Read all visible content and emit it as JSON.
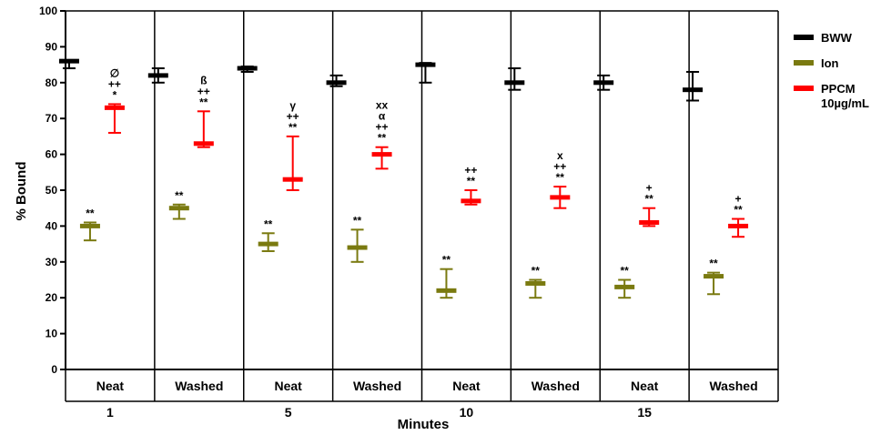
{
  "chart_data": {
    "type": "scatter",
    "ylabel": "% Bound",
    "xlabel": "Minutes",
    "ylim": [
      0,
      100
    ],
    "yticks": [
      "0",
      "10",
      "20",
      "30",
      "40",
      "50",
      "60",
      "70",
      "80",
      "90",
      "100"
    ],
    "legend_position": "right",
    "grid": false,
    "time_labels": [
      "1",
      "5",
      "10",
      "15"
    ],
    "condition_labels": [
      "Neat",
      "Washed",
      "Neat",
      "Washed",
      "Neat",
      "Washed",
      "Neat",
      "Washed"
    ],
    "legend": [
      {
        "name": "BWW",
        "color": "#000000"
      },
      {
        "name": "Ion",
        "color": "#7a7a10"
      },
      {
        "name": "PPCM",
        "name2": "10µg/mL",
        "color": "#ff0000"
      }
    ],
    "series": [
      {
        "name": "BWW",
        "color": "#000000",
        "mean": [
          86,
          82,
          84,
          80,
          85,
          80,
          80,
          78
        ],
        "low": [
          84,
          80,
          83,
          79,
          80,
          78,
          78,
          75
        ],
        "high": [
          86,
          84,
          84.5,
          82,
          85.5,
          84,
          82,
          83
        ],
        "annotations": [
          [],
          [],
          [],
          [],
          [],
          [],
          [],
          []
        ]
      },
      {
        "name": "Ion",
        "color": "#7a7a10",
        "mean": [
          40,
          45,
          35,
          34,
          22,
          24,
          23,
          26
        ],
        "low": [
          36,
          42,
          33,
          30,
          20,
          20,
          20,
          21
        ],
        "high": [
          41,
          46,
          38,
          39,
          28,
          25,
          25,
          27
        ],
        "annotations": [
          [
            "**"
          ],
          [
            "**"
          ],
          [
            "**"
          ],
          [
            "**"
          ],
          [
            "**"
          ],
          [
            "**"
          ],
          [
            "**"
          ],
          [
            "**"
          ]
        ]
      },
      {
        "name": "PPCM",
        "color": "#ff0000",
        "mean": [
          73,
          63,
          53,
          60,
          47,
          48,
          41,
          40
        ],
        "low": [
          66,
          62,
          50,
          56,
          46,
          45,
          40,
          37
        ],
        "high": [
          74,
          72,
          65,
          62,
          50,
          51,
          45,
          42
        ],
        "annotations": [
          [
            "∅",
            "++",
            "*"
          ],
          [
            "ß",
            "++",
            "**"
          ],
          [
            "γ",
            "++",
            "**"
          ],
          [
            "xx",
            "α",
            "++",
            "**"
          ],
          [
            "++",
            "**"
          ],
          [
            "x",
            "++",
            "**"
          ],
          [
            "+",
            "**"
          ],
          [
            "+",
            "**"
          ]
        ]
      }
    ]
  }
}
